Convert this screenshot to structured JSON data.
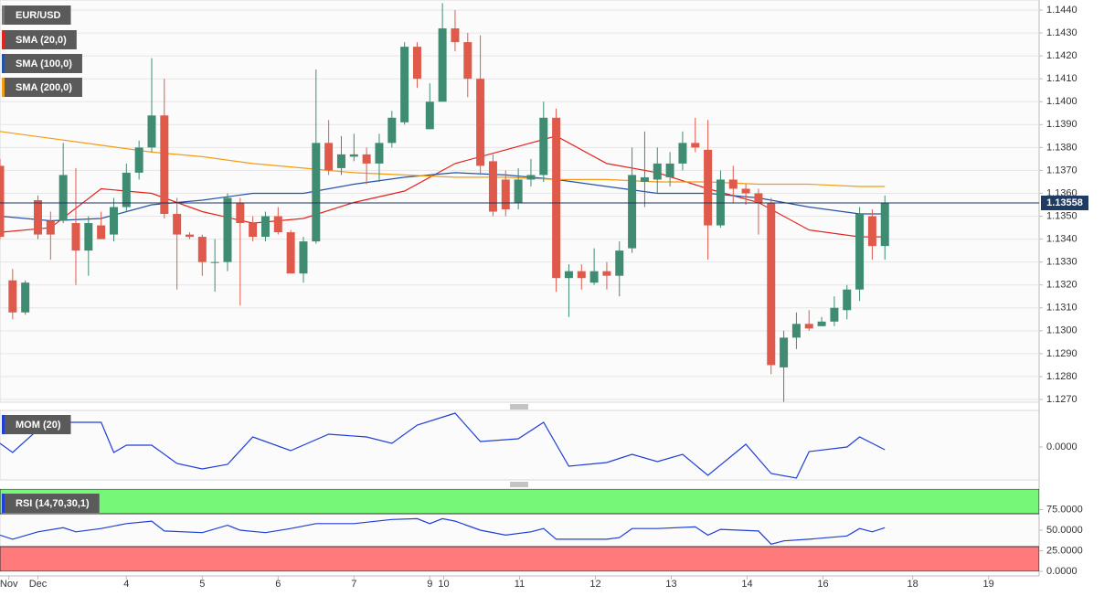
{
  "chart_data": [
    {
      "type": "candlestick",
      "title": "EUR/USD",
      "x": [
        0,
        1,
        2,
        3,
        4,
        5,
        6,
        7,
        8,
        9,
        10,
        11,
        12,
        13,
        14,
        15,
        16,
        17,
        18,
        19,
        20,
        21,
        22,
        23,
        24,
        25,
        26,
        27,
        28,
        29,
        30,
        31,
        32,
        33,
        34,
        35,
        36,
        37,
        38,
        39,
        40,
        41,
        42,
        43,
        44,
        45,
        46,
        47,
        48,
        49,
        50,
        51,
        52,
        53,
        54,
        55,
        56,
        57,
        58,
        59,
        60,
        61,
        62,
        63,
        64,
        65,
        66,
        67,
        68,
        69,
        70
      ],
      "open": [
        1.1372,
        1.1322,
        1.1308,
        1.1357,
        1.1348,
        1.1348,
        1.1347,
        1.1335,
        1.1346,
        1.1342,
        1.1354,
        1.1369,
        1.138,
        1.1394,
        1.1351,
        1.1342,
        1.1341,
        1.133,
        1.133,
        1.1356,
        1.1347,
        1.1341,
        1.135,
        1.1343,
        1.1325,
        1.1339,
        1.1382,
        1.1371,
        1.1376,
        1.1377,
        1.1373,
        1.1382,
        1.1391,
        1.1424,
        1.1388,
        1.14,
        1.1432,
        1.1426,
        1.141,
        1.1374,
        1.1366,
        1.1356,
        1.1366,
        1.1368,
        1.1393,
        1.1323,
        1.1326,
        1.1321,
        1.1326,
        1.1324,
        1.1336,
        1.1365,
        1.1366,
        1.1367,
        1.1373,
        1.1382,
        1.1379,
        1.1346,
        1.1366,
        1.1362,
        1.136,
        1.1356,
        1.1284,
        1.1297,
        1.1303,
        1.1302,
        1.1304,
        1.1309,
        1.1318,
        1.135,
        1.1337
      ],
      "high": [
        1.1375,
        1.1327,
        1.1322,
        1.1359,
        1.1352,
        1.1382,
        1.1371,
        1.135,
        1.1352,
        1.1358,
        1.1373,
        1.1383,
        1.1419,
        1.141,
        1.1358,
        1.1343,
        1.1342,
        1.134,
        1.136,
        1.1358,
        1.135,
        1.1352,
        1.1354,
        1.1344,
        1.1341,
        1.1414,
        1.1392,
        1.1385,
        1.1386,
        1.138,
        1.1386,
        1.1396,
        1.1426,
        1.1426,
        1.1408,
        1.1443,
        1.144,
        1.143,
        1.1429,
        1.1377,
        1.137,
        1.1371,
        1.1375,
        1.14,
        1.1397,
        1.1329,
        1.1329,
        1.1336,
        1.133,
        1.1339,
        1.138,
        1.1387,
        1.138,
        1.1378,
        1.1387,
        1.1393,
        1.1392,
        1.137,
        1.1372,
        1.1364,
        1.1362,
        1.1358,
        1.13,
        1.1308,
        1.1309,
        1.1306,
        1.1315,
        1.132,
        1.1354,
        1.1353,
        1.1359
      ],
      "low": [
        1.134,
        1.1305,
        1.1307,
        1.134,
        1.1331,
        1.1347,
        1.132,
        1.1324,
        1.134,
        1.1339,
        1.1352,
        1.1366,
        1.1378,
        1.1349,
        1.1318,
        1.134,
        1.1324,
        1.1317,
        1.1326,
        1.1311,
        1.1339,
        1.1339,
        1.1342,
        1.1325,
        1.1321,
        1.1338,
        1.1368,
        1.1368,
        1.1374,
        1.1364,
        1.1365,
        1.138,
        1.139,
        1.1406,
        1.1388,
        1.14,
        1.1422,
        1.1402,
        1.1368,
        1.135,
        1.135,
        1.1353,
        1.1363,
        1.1365,
        1.1317,
        1.1306,
        1.1318,
        1.132,
        1.1318,
        1.1315,
        1.1334,
        1.1354,
        1.136,
        1.1363,
        1.137,
        1.1378,
        1.1331,
        1.1345,
        1.1356,
        1.1355,
        1.1342,
        1.1281,
        1.1269,
        1.1292,
        1.13,
        1.1302,
        1.1302,
        1.1305,
        1.1313,
        1.1331,
        1.1331
      ],
      "close": [
        1.1341,
        1.1308,
        1.1321,
        1.1342,
        1.1342,
        1.1368,
        1.1335,
        1.1347,
        1.134,
        1.1354,
        1.1369,
        1.138,
        1.1394,
        1.1351,
        1.1342,
        1.1341,
        1.133,
        1.133,
        1.1358,
        1.1347,
        1.1341,
        1.135,
        1.1343,
        1.1325,
        1.1339,
        1.1382,
        1.137,
        1.1377,
        1.1377,
        1.1373,
        1.1382,
        1.1393,
        1.1424,
        1.141,
        1.14,
        1.1432,
        1.1426,
        1.141,
        1.1372,
        1.1352,
        1.1353,
        1.1366,
        1.1368,
        1.1393,
        1.1323,
        1.1326,
        1.1323,
        1.1326,
        1.1324,
        1.1335,
        1.1368,
        1.1367,
        1.1373,
        1.1373,
        1.1382,
        1.138,
        1.1346,
        1.1366,
        1.1362,
        1.136,
        1.1356,
        1.1285,
        1.1297,
        1.1303,
        1.1301,
        1.1304,
        1.131,
        1.1318,
        1.1351,
        1.1337,
        1.13558
      ],
      "up_color": "#3f8c73",
      "down_color": "#e05a4b",
      "series": [
        {
          "name": "SMA (20,0)",
          "color": "#e3241c",
          "x": [
            0,
            4,
            8,
            12,
            16,
            20,
            24,
            28,
            32,
            36,
            40,
            44,
            48,
            52,
            56,
            60,
            64,
            68,
            70
          ],
          "values": [
            1.1343,
            1.1345,
            1.1362,
            1.136,
            1.1352,
            1.1347,
            1.1349,
            1.1356,
            1.1361,
            1.1373,
            1.1379,
            1.1385,
            1.1373,
            1.1369,
            1.1362,
            1.1356,
            1.1344,
            1.1341,
            1.1341
          ]
        },
        {
          "name": "SMA (100,0)",
          "color": "#2453a8",
          "x": [
            0,
            4,
            8,
            12,
            16,
            20,
            24,
            28,
            32,
            36,
            40,
            44,
            48,
            52,
            56,
            60,
            64,
            68,
            70
          ],
          "values": [
            1.135,
            1.1348,
            1.1349,
            1.1355,
            1.1357,
            1.136,
            1.136,
            1.1364,
            1.1367,
            1.1369,
            1.1368,
            1.1366,
            1.1363,
            1.136,
            1.136,
            1.1358,
            1.1354,
            1.1351,
            1.1351
          ]
        },
        {
          "name": "SMA (200,0)",
          "color": "#f39c12",
          "x": [
            0,
            4,
            8,
            12,
            16,
            20,
            24,
            28,
            32,
            36,
            40,
            44,
            48,
            52,
            56,
            60,
            64,
            68,
            70
          ],
          "values": [
            1.1387,
            1.1384,
            1.1381,
            1.1378,
            1.1376,
            1.1373,
            1.1371,
            1.1369,
            1.1368,
            1.1367,
            1.1367,
            1.1366,
            1.1366,
            1.1365,
            1.1365,
            1.1364,
            1.1364,
            1.1363,
            1.1363
          ]
        }
      ],
      "last_price": 1.13558,
      "xlim": [
        0,
        82.2
      ],
      "xticks": [
        {
          "value": 0.7,
          "label": "Nov"
        },
        {
          "value": 3,
          "label": "Dec"
        },
        {
          "value": 10,
          "label": "4"
        },
        {
          "value": 16,
          "label": "5"
        },
        {
          "value": 22,
          "label": "6"
        },
        {
          "value": 28,
          "label": "7"
        },
        {
          "value": 34,
          "label": "9"
        },
        {
          "value": 35.1,
          "label": "10"
        },
        {
          "value": 41.1,
          "label": "11"
        },
        {
          "value": 47.1,
          "label": "12"
        },
        {
          "value": 53.1,
          "label": "13"
        },
        {
          "value": 59.1,
          "label": "14"
        },
        {
          "value": 65.1,
          "label": "16"
        },
        {
          "value": 72.2,
          "label": "18"
        },
        {
          "value": 78.2,
          "label": "19"
        }
      ],
      "ylim": [
        1.12688,
        1.14444
      ],
      "yticks": [
        {
          "value": 1.127,
          "label": "1.1270"
        },
        {
          "value": 1.128,
          "label": "1.1280"
        },
        {
          "value": 1.129,
          "label": "1.1290"
        },
        {
          "value": 1.13,
          "label": "1.1300"
        },
        {
          "value": 1.131,
          "label": "1.1310"
        },
        {
          "value": 1.132,
          "label": "1.1320"
        },
        {
          "value": 1.133,
          "label": "1.1330"
        },
        {
          "value": 1.134,
          "label": "1.1340"
        },
        {
          "value": 1.135,
          "label": "1.1350"
        },
        {
          "value": 1.136,
          "label": "1.1360"
        },
        {
          "value": 1.137,
          "label": "1.1370"
        },
        {
          "value": 1.138,
          "label": "1.1380"
        },
        {
          "value": 1.139,
          "label": "1.1390"
        },
        {
          "value": 1.14,
          "label": "1.1400"
        },
        {
          "value": 1.141,
          "label": "1.1410"
        },
        {
          "value": 1.142,
          "label": "1.1420"
        },
        {
          "value": 1.143,
          "label": "1.1430"
        },
        {
          "value": 1.144,
          "label": "1.1440"
        }
      ],
      "grid": true
    },
    {
      "type": "line",
      "title": "MOM (20)",
      "series": [
        {
          "color": "#1f3fd6",
          "x": [
            0,
            1,
            3,
            5,
            8,
            9,
            10,
            12,
            14,
            16,
            18,
            20,
            23,
            26,
            29,
            31,
            33,
            36,
            38,
            41,
            43,
            45,
            48,
            50,
            52,
            54,
            56,
            59,
            61,
            63,
            64,
            67,
            68,
            70
          ],
          "values": [
            0.0004,
            -0.0006,
            0.0019,
            0.0027,
            0.0027,
            -0.0006,
            0.0002,
            0.0002,
            -0.0018,
            -0.0024,
            -0.0019,
            0.0011,
            -0.0004,
            0.0014,
            0.0011,
            0.0004,
            0.0024,
            0.0037,
            0.0006,
            0.0009,
            0.0027,
            -0.0021,
            -0.0017,
            -0.0008,
            -0.0016,
            -0.0008,
            -0.0031,
            0.0003,
            -0.0029,
            -0.0034,
            -0.0005,
            0.0,
            0.0011,
            -0.0003
          ]
        }
      ],
      "ylim": [
        -0.0036,
        0.004
      ],
      "yticks": [
        {
          "value": 0,
          "label": "0.0000"
        }
      ],
      "grid": false
    },
    {
      "type": "line",
      "title": "RSI (14,70,30,1)",
      "series": [
        {
          "color": "#1f3fd6",
          "x": [
            0,
            1,
            3,
            5,
            6,
            8,
            10,
            12,
            13,
            16,
            18,
            19,
            21,
            23,
            25,
            28,
            31,
            33,
            34,
            35,
            36,
            38,
            40,
            42,
            43,
            44,
            46,
            48,
            49,
            50,
            52,
            55,
            56,
            57,
            60,
            61,
            62,
            64,
            67,
            68,
            69,
            70
          ],
          "values": [
            44,
            39,
            48,
            53,
            48,
            52,
            58,
            61,
            49,
            47,
            56,
            50,
            47,
            52,
            58,
            58,
            63,
            64,
            58,
            64,
            61,
            50,
            44,
            48,
            52,
            39,
            39,
            39,
            41,
            52,
            52,
            54,
            44,
            51,
            49,
            33,
            37,
            39,
            43,
            52,
            48,
            53
          ]
        }
      ],
      "bands": [
        30,
        70
      ],
      "upper_color": "#77f777",
      "lower_color": "#ff7b7b",
      "ylim": [
        0,
        100
      ],
      "yticks": [
        {
          "value": 0,
          "label": "0.0000"
        },
        {
          "value": 25,
          "label": "25.0000"
        },
        {
          "value": 50,
          "label": "50.0000"
        },
        {
          "value": 75,
          "label": "75.0000"
        }
      ],
      "grid": false
    }
  ]
}
